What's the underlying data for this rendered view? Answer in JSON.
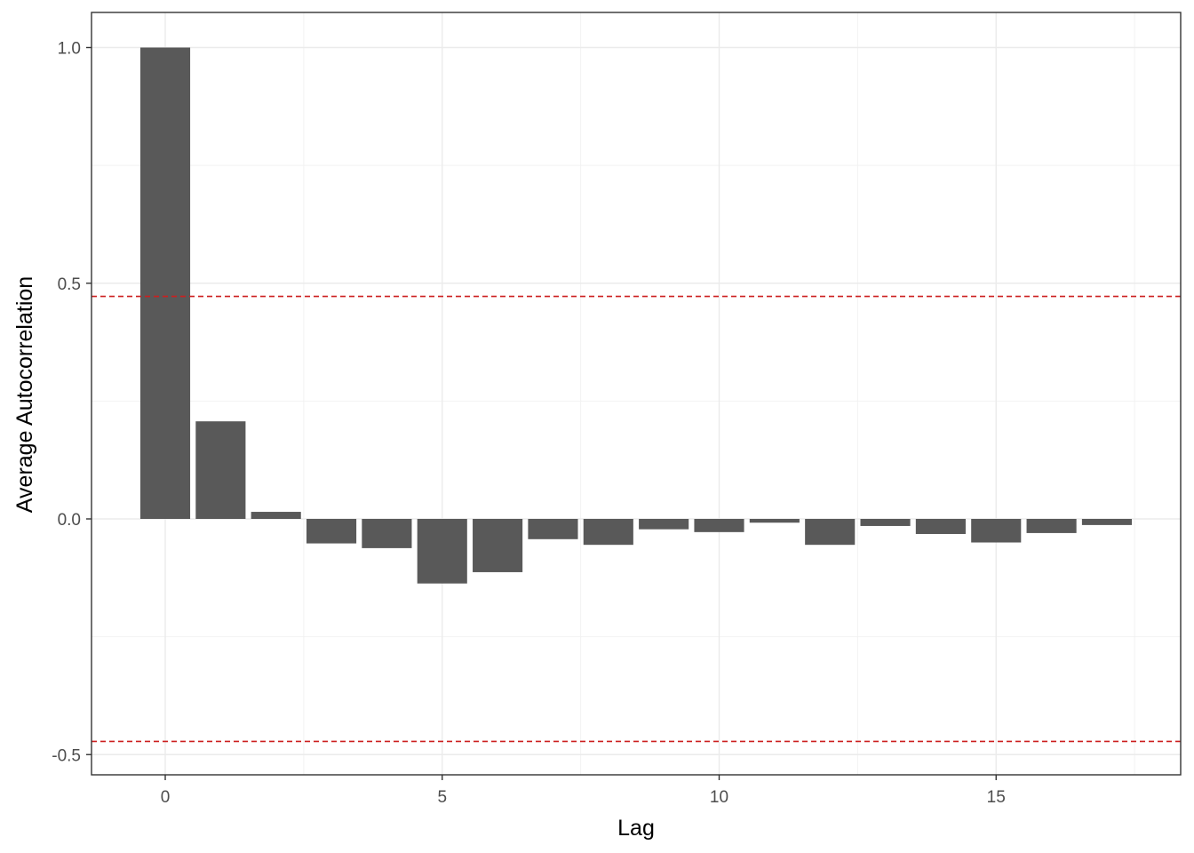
{
  "chart_data": {
    "type": "bar",
    "xlabel": "Lag",
    "ylabel": "Average Autocorrelation",
    "x": [
      0,
      1,
      2,
      3,
      4,
      5,
      6,
      7,
      8,
      9,
      10,
      11,
      12,
      13,
      14,
      15,
      16,
      17
    ],
    "values": [
      1.0,
      0.207,
      0.015,
      -0.052,
      -0.062,
      -0.137,
      -0.113,
      -0.043,
      -0.055,
      -0.022,
      -0.028,
      -0.008,
      -0.055,
      -0.015,
      -0.032,
      -0.05,
      -0.03,
      -0.013
    ],
    "xlim": [
      -0.5,
      17.5
    ],
    "ylim": [
      -0.5,
      1.0
    ],
    "x_ticks": [
      0,
      5,
      10,
      15
    ],
    "x_tick_labels": [
      "0",
      "5",
      "10",
      "15"
    ],
    "y_ticks": [
      -0.5,
      0.0,
      0.5,
      1.0
    ],
    "y_tick_labels": [
      "-0.5",
      "0.0",
      "0.5",
      "1.0"
    ],
    "reference_lines": [
      0.472,
      -0.472
    ],
    "grid": true,
    "bar_color": "#595959",
    "reference_line_color": "#cc1f1f"
  }
}
